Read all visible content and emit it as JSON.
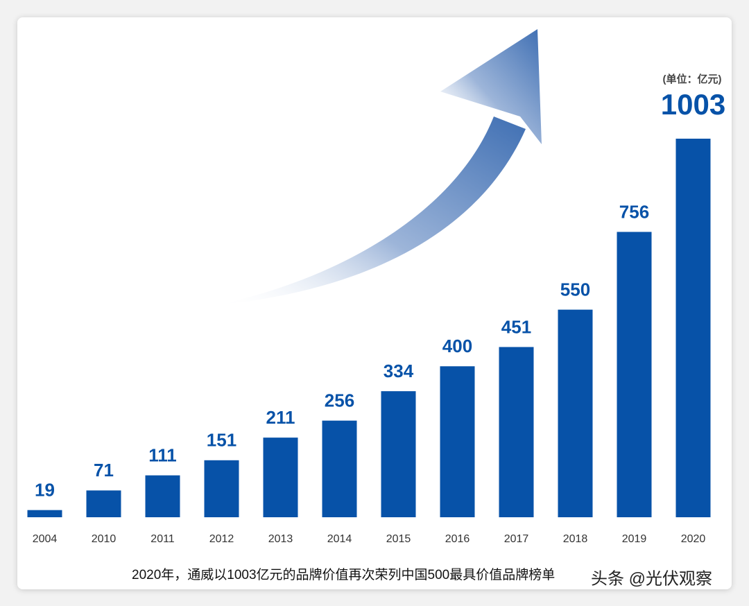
{
  "chart_data": {
    "type": "bar",
    "unit_note": "(单位：亿元)",
    "caption": "2020年，通威以1003亿元的品牌价值再次荣列中国500最具价值品牌榜单",
    "watermark": "头条 @光伏观察",
    "categories": [
      "2004",
      "2010",
      "2011",
      "2012",
      "2013",
      "2014",
      "2015",
      "2016",
      "2017",
      "2018",
      "2019",
      "2020"
    ],
    "values": [
      19,
      71,
      111,
      151,
      211,
      256,
      334,
      400,
      451,
      550,
      756,
      1003
    ],
    "color": "#0752a8"
  }
}
